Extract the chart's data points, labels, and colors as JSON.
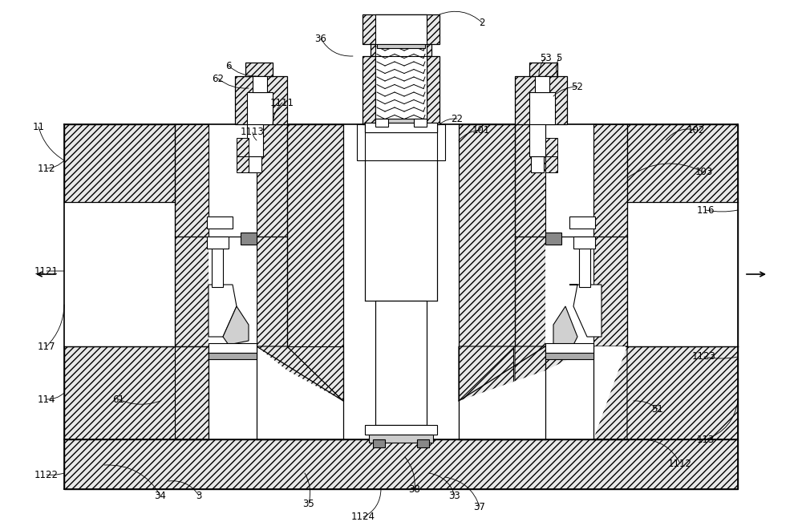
{
  "bg": "#ffffff",
  "hc": "#e8e8e8",
  "ec": "#000000",
  "fig_w": 10.0,
  "fig_h": 6.61,
  "labels": [
    [
      "2",
      601,
      28
    ],
    [
      "5",
      697,
      72
    ],
    [
      "6",
      285,
      82
    ],
    [
      "11",
      48,
      158
    ],
    [
      "22",
      570,
      148
    ],
    [
      "33",
      567,
      618
    ],
    [
      "34",
      200,
      618
    ],
    [
      "35",
      385,
      628
    ],
    [
      "36",
      400,
      48
    ],
    [
      "37",
      598,
      632
    ],
    [
      "38",
      517,
      610
    ],
    [
      "51",
      820,
      510
    ],
    [
      "52",
      720,
      108
    ],
    [
      "53",
      680,
      72
    ],
    [
      "61",
      148,
      498
    ],
    [
      "62",
      272,
      98
    ],
    [
      "101",
      600,
      162
    ],
    [
      "102",
      868,
      162
    ],
    [
      "103",
      878,
      215
    ],
    [
      "112",
      58,
      210
    ],
    [
      "113",
      880,
      548
    ],
    [
      "114",
      58,
      498
    ],
    [
      "116",
      880,
      262
    ],
    [
      "117",
      58,
      432
    ],
    [
      "1111",
      352,
      128
    ],
    [
      "1112",
      848,
      578
    ],
    [
      "1113",
      315,
      165
    ],
    [
      "1121",
      58,
      338
    ],
    [
      "1122",
      58,
      592
    ],
    [
      "1123",
      878,
      445
    ],
    [
      "1124",
      453,
      645
    ],
    [
      "3",
      248,
      618
    ]
  ]
}
